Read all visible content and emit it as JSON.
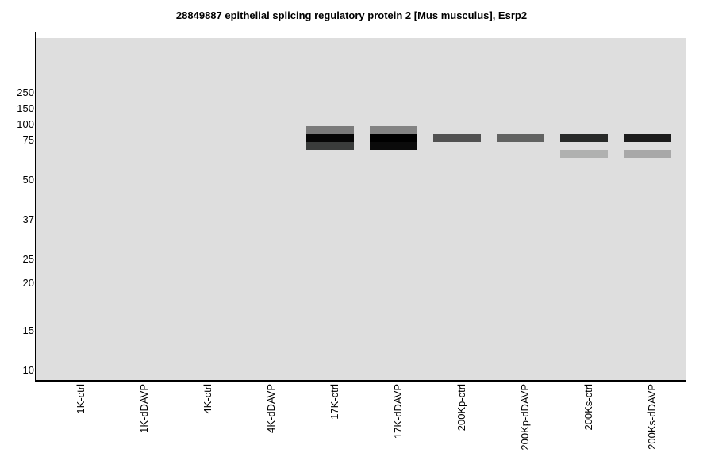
{
  "chart_data": {
    "type": "western-blot",
    "title": "28849887 epithelial splicing regulatory protein 2 [Mus musculus], Esrp2",
    "background_color": "#dedede",
    "y_ticks": [
      250,
      150,
      100,
      75,
      50,
      37,
      25,
      20,
      15,
      10
    ],
    "lanes": [
      "1K-ctrl",
      "1K-dDAVP",
      "4K-ctrl",
      "4K-dDAVP",
      "17K-ctrl",
      "17K-dDAVP",
      "200Kp-ctrl",
      "200Kp-dDAVP",
      "200Ks-ctrl",
      "200Ks-dDAVP"
    ],
    "bands": [
      {
        "lane": "17K-ctrl",
        "mw": 90,
        "color": "#7a7a7a"
      },
      {
        "lane": "17K-ctrl",
        "mw": 77.5,
        "color": "#060606"
      },
      {
        "lane": "17K-ctrl",
        "mw": 71,
        "color": "#3a3c3b"
      },
      {
        "lane": "17K-dDAVP",
        "mw": 90,
        "color": "#838383"
      },
      {
        "lane": "17K-dDAVP",
        "mw": 77.5,
        "color": "#000000"
      },
      {
        "lane": "17K-dDAVP",
        "mw": 71,
        "color": "#0b0b0b"
      },
      {
        "lane": "200Kp-ctrl",
        "mw": 77.5,
        "color": "#515151"
      },
      {
        "lane": "200Kp-dDAVP",
        "mw": 77.5,
        "color": "#616261"
      },
      {
        "lane": "200Ks-ctrl",
        "mw": 77.5,
        "color": "#282a29"
      },
      {
        "lane": "200Ks-ctrl",
        "mw": 66,
        "color": "#b0b1b0"
      },
      {
        "lane": "200Ks-dDAVP",
        "mw": 77.5,
        "color": "#1c1c1c"
      },
      {
        "lane": "200Ks-dDAVP",
        "mw": 66,
        "color": "#a8a8a8"
      }
    ]
  }
}
